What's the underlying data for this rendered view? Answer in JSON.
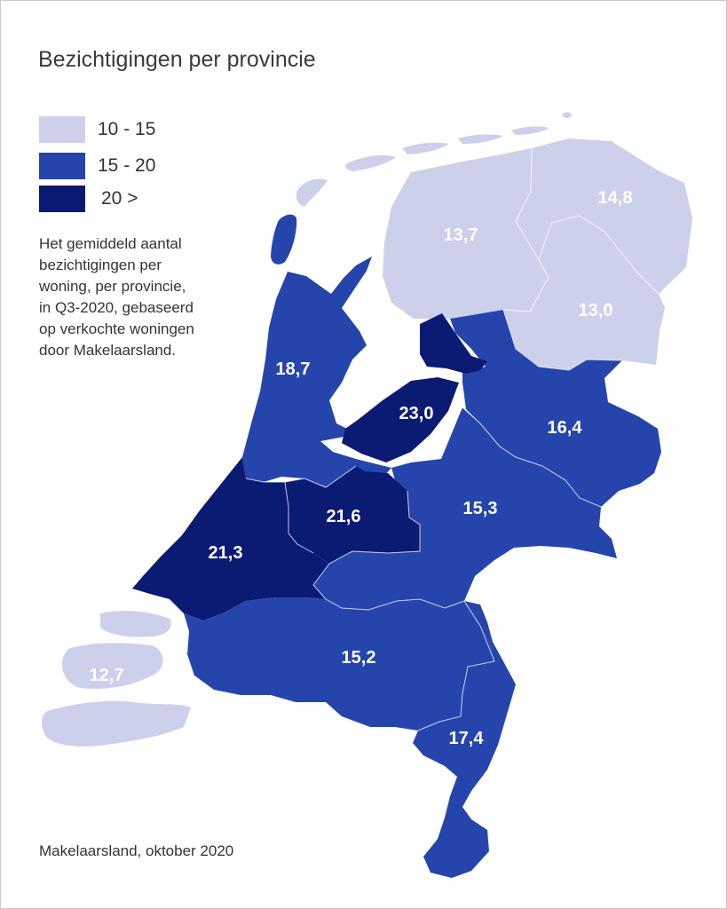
{
  "title": "Bezichtigingen per provincie",
  "legend": [
    {
      "label": "10 - 15",
      "color": "#cdd0ea"
    },
    {
      "label": "15 - 20",
      "color": "#2545ad"
    },
    {
      "label": "20 >",
      "color": "#0b1a73"
    }
  ],
  "description": "Het gemiddeld aantal\nbezichtigingen per\nwoning, per provincie,\nin Q3-2020, gebaseerd\nop verkochte woningen\ndoor Makelaarsland.",
  "source": "Makelaarsland, oktober 2020",
  "provinces": [
    {
      "name": "Groningen",
      "value": "14,8"
    },
    {
      "name": "Friesland",
      "value": "13,7"
    },
    {
      "name": "Drenthe",
      "value": "13,0"
    },
    {
      "name": "Noord-Holland",
      "value": "18,7"
    },
    {
      "name": "Flevoland",
      "value": "23,0"
    },
    {
      "name": "Overijssel",
      "value": "16,4"
    },
    {
      "name": "Gelderland",
      "value": "15,3"
    },
    {
      "name": "Utrecht",
      "value": "21,6"
    },
    {
      "name": "Zuid-Holland",
      "value": "21,3"
    },
    {
      "name": "Zeeland",
      "value": "12,7"
    },
    {
      "name": "Noord-Brabant",
      "value": "15,2"
    },
    {
      "name": "Limburg",
      "value": "17,4"
    }
  ]
}
